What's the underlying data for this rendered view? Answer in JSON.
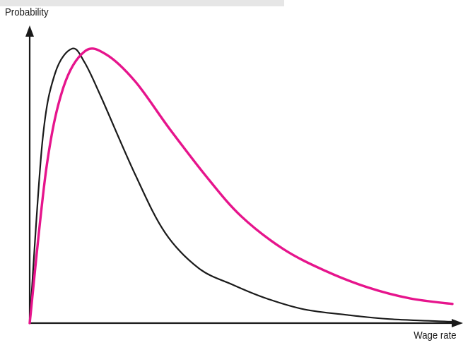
{
  "chart_data": {
    "type": "line",
    "title": "",
    "xlabel": "Wage rate",
    "ylabel": "Probability",
    "grid": false,
    "legend": "none",
    "series": [
      {
        "color": "#1a1a1a",
        "x": [
          0,
          0.03,
          0.06,
          0.1,
          0.13,
          0.17,
          0.25,
          0.32,
          0.4,
          0.48,
          0.56,
          0.65,
          0.75,
          0.85,
          1.0
        ],
        "y": [
          0,
          0.66,
          0.91,
          1.0,
          0.95,
          0.82,
          0.54,
          0.33,
          0.2,
          0.14,
          0.09,
          0.05,
          0.03,
          0.015,
          0.005
        ]
      },
      {
        "color": "#e6148c",
        "x": [
          0,
          0.04,
          0.08,
          0.13,
          0.18,
          0.25,
          0.33,
          0.42,
          0.5,
          0.6,
          0.7,
          0.8,
          0.9,
          1.0
        ],
        "y": [
          0,
          0.57,
          0.86,
          0.99,
          0.98,
          0.88,
          0.71,
          0.53,
          0.39,
          0.27,
          0.19,
          0.13,
          0.09,
          0.07
        ]
      }
    ]
  }
}
